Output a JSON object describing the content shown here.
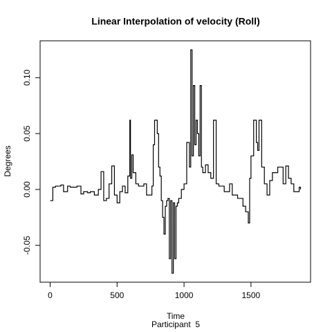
{
  "chart_data": {
    "type": "line",
    "step": true,
    "title": "Linear Interpolation of velocity (Roll)",
    "xlabel": "Time",
    "subtitle": "Participant  5",
    "ylabel": "Degrees",
    "color": "#000000",
    "xlim": [
      -75,
      1945
    ],
    "ylim": [
      -0.083,
      0.133
    ],
    "xticks": [
      0,
      500,
      1000,
      1500
    ],
    "yticks": [
      -0.05,
      {
        "value": 0,
        "label": "0.00"
      },
      0.05,
      {
        "value": 0.1,
        "label": "0.10"
      }
    ],
    "x": [
      0,
      20,
      40,
      80,
      100,
      130,
      150,
      200,
      230,
      250,
      280,
      300,
      330,
      360,
      380,
      400,
      420,
      440,
      460,
      480,
      500,
      520,
      540,
      560,
      580,
      595,
      600,
      610,
      620,
      640,
      660,
      700,
      720,
      760,
      770,
      780,
      800,
      810,
      820,
      830,
      840,
      850,
      860,
      870,
      880,
      890,
      900,
      910,
      920,
      930,
      940,
      950,
      960,
      980,
      1000,
      1020,
      1040,
      1050,
      1060,
      1070,
      1080,
      1090,
      1100,
      1110,
      1120,
      1130,
      1140,
      1160,
      1180,
      1200,
      1220,
      1240,
      1260,
      1300,
      1340,
      1360,
      1400,
      1440,
      1460,
      1480,
      1490,
      1500,
      1520,
      1540,
      1550,
      1560,
      1580,
      1600,
      1620,
      1640,
      1660,
      1700,
      1740,
      1760,
      1780,
      1800,
      1820,
      1860,
      1870
    ],
    "values": [
      -0.01,
      0.002,
      0.003,
      0.004,
      -0.002,
      0.003,
      0.002,
      0.003,
      -0.004,
      -0.002,
      -0.003,
      -0.002,
      -0.005,
      0.0,
      0.016,
      -0.01,
      -0.008,
      0.005,
      0.021,
      -0.005,
      -0.012,
      -0.002,
      0.003,
      -0.003,
      0.012,
      0.062,
      0.01,
      0.031,
      0.015,
      0.005,
      0.003,
      0.005,
      -0.005,
      0.003,
      0.04,
      0.062,
      0.05,
      0.02,
      0.012,
      -0.01,
      -0.025,
      -0.04,
      -0.015,
      -0.01,
      -0.008,
      -0.062,
      -0.01,
      -0.075,
      -0.012,
      -0.062,
      -0.015,
      -0.012,
      -0.008,
      0.0,
      0.005,
      0.042,
      0.02,
      0.125,
      0.03,
      0.093,
      0.04,
      0.062,
      0.05,
      0.03,
      0.093,
      0.02,
      0.015,
      0.022,
      0.015,
      0.01,
      0.062,
      0.005,
      0.003,
      -0.002,
      0.005,
      -0.005,
      -0.008,
      -0.015,
      -0.02,
      -0.03,
      0.01,
      0.03,
      0.062,
      0.042,
      0.035,
      0.062,
      0.02,
      0.005,
      -0.005,
      0.008,
      0.015,
      0.02,
      0.005,
      0.021,
      0.01,
      0.005,
      -0.002,
      0.002,
      0.0
    ]
  }
}
